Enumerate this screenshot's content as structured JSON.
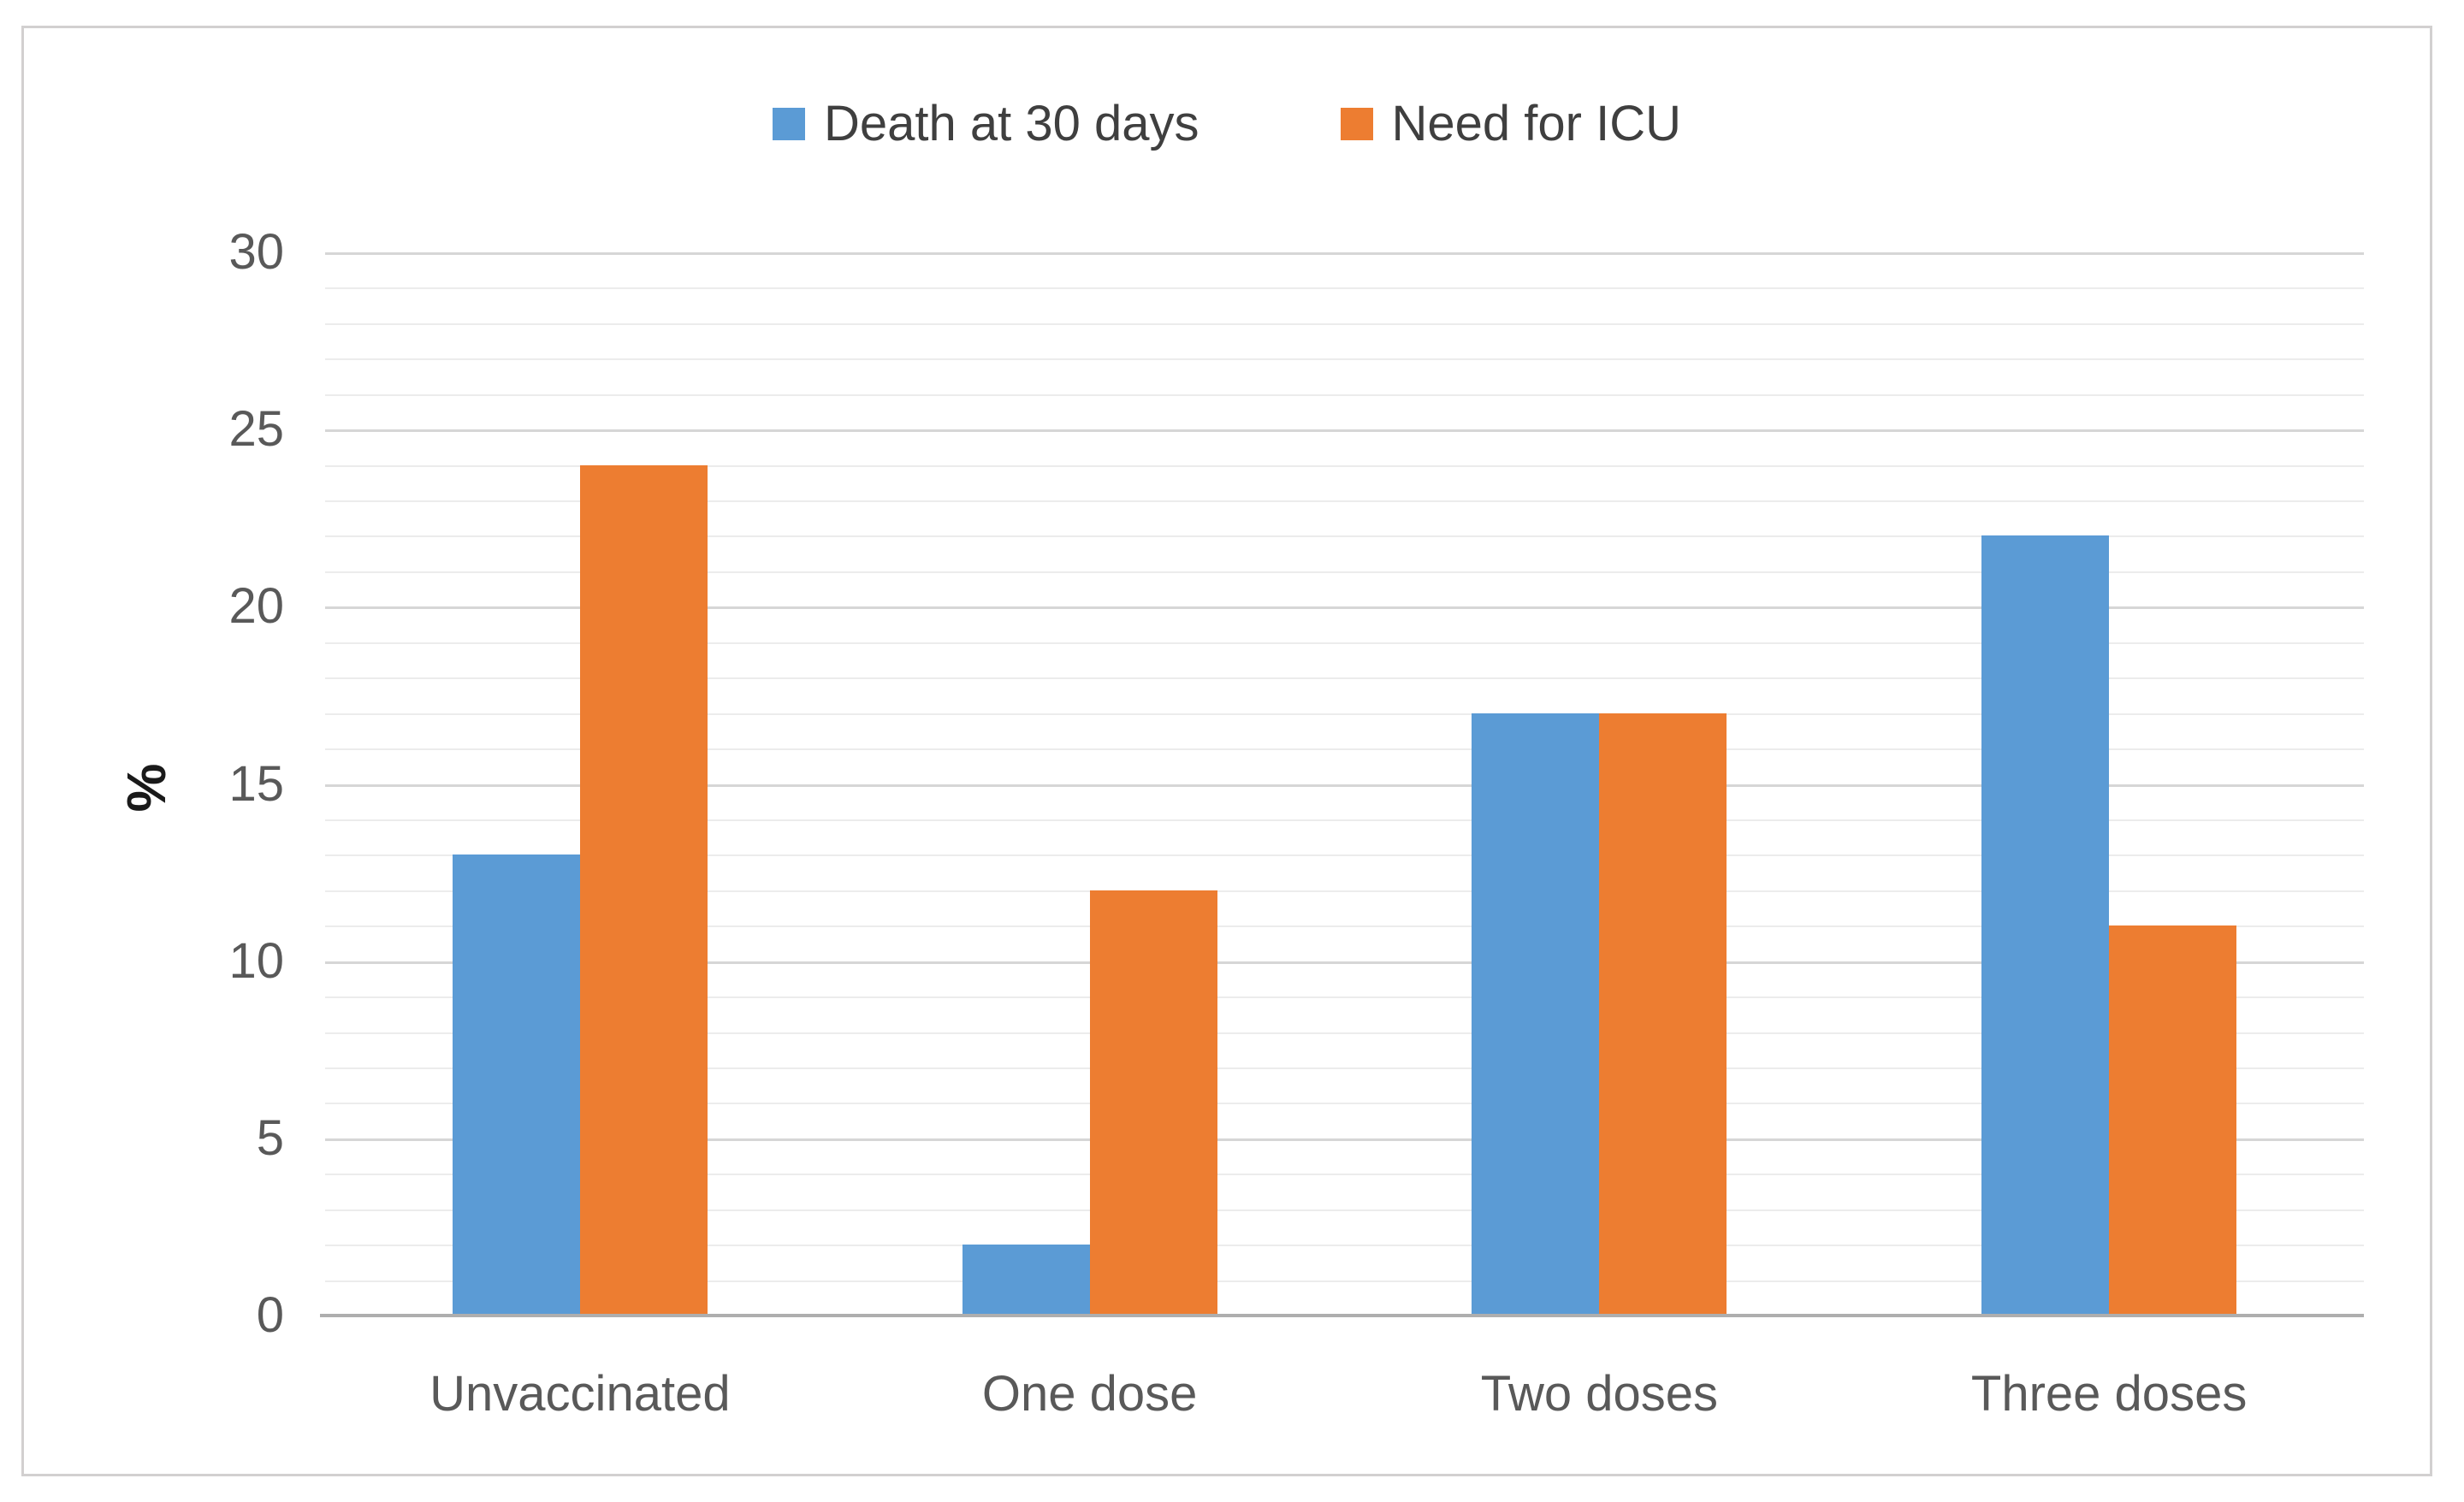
{
  "chart_data": {
    "type": "bar",
    "title": "",
    "categories": [
      "Unvaccinated",
      "One dose",
      "Two doses",
      "Three doses"
    ],
    "series": [
      {
        "name": "Death at 30 days",
        "color": "#5B9BD5",
        "values": [
          13,
          2,
          17,
          22
        ]
      },
      {
        "name": "Need for ICU",
        "color": "#ED7D31",
        "values": [
          24,
          12,
          17,
          11
        ]
      }
    ],
    "xlabel": "",
    "ylabel": "%",
    "ylim": [
      0,
      30
    ],
    "y_major_step": 5,
    "y_minor_step": 1,
    "y_tick_labels": [
      "0",
      "5",
      "10",
      "15",
      "20",
      "25",
      "30"
    ],
    "grid": true,
    "legend_position": "top-center"
  },
  "colors": {
    "series_blue": "#5B9BD5",
    "series_orange": "#ED7D31",
    "tick_text": "#595959",
    "legend_text": "#3f3f3f",
    "minor_grid": "#ececec",
    "major_grid": "#d6d6d6",
    "axis_line": "#aeaeae",
    "frame_border": "#d2d0d0"
  }
}
